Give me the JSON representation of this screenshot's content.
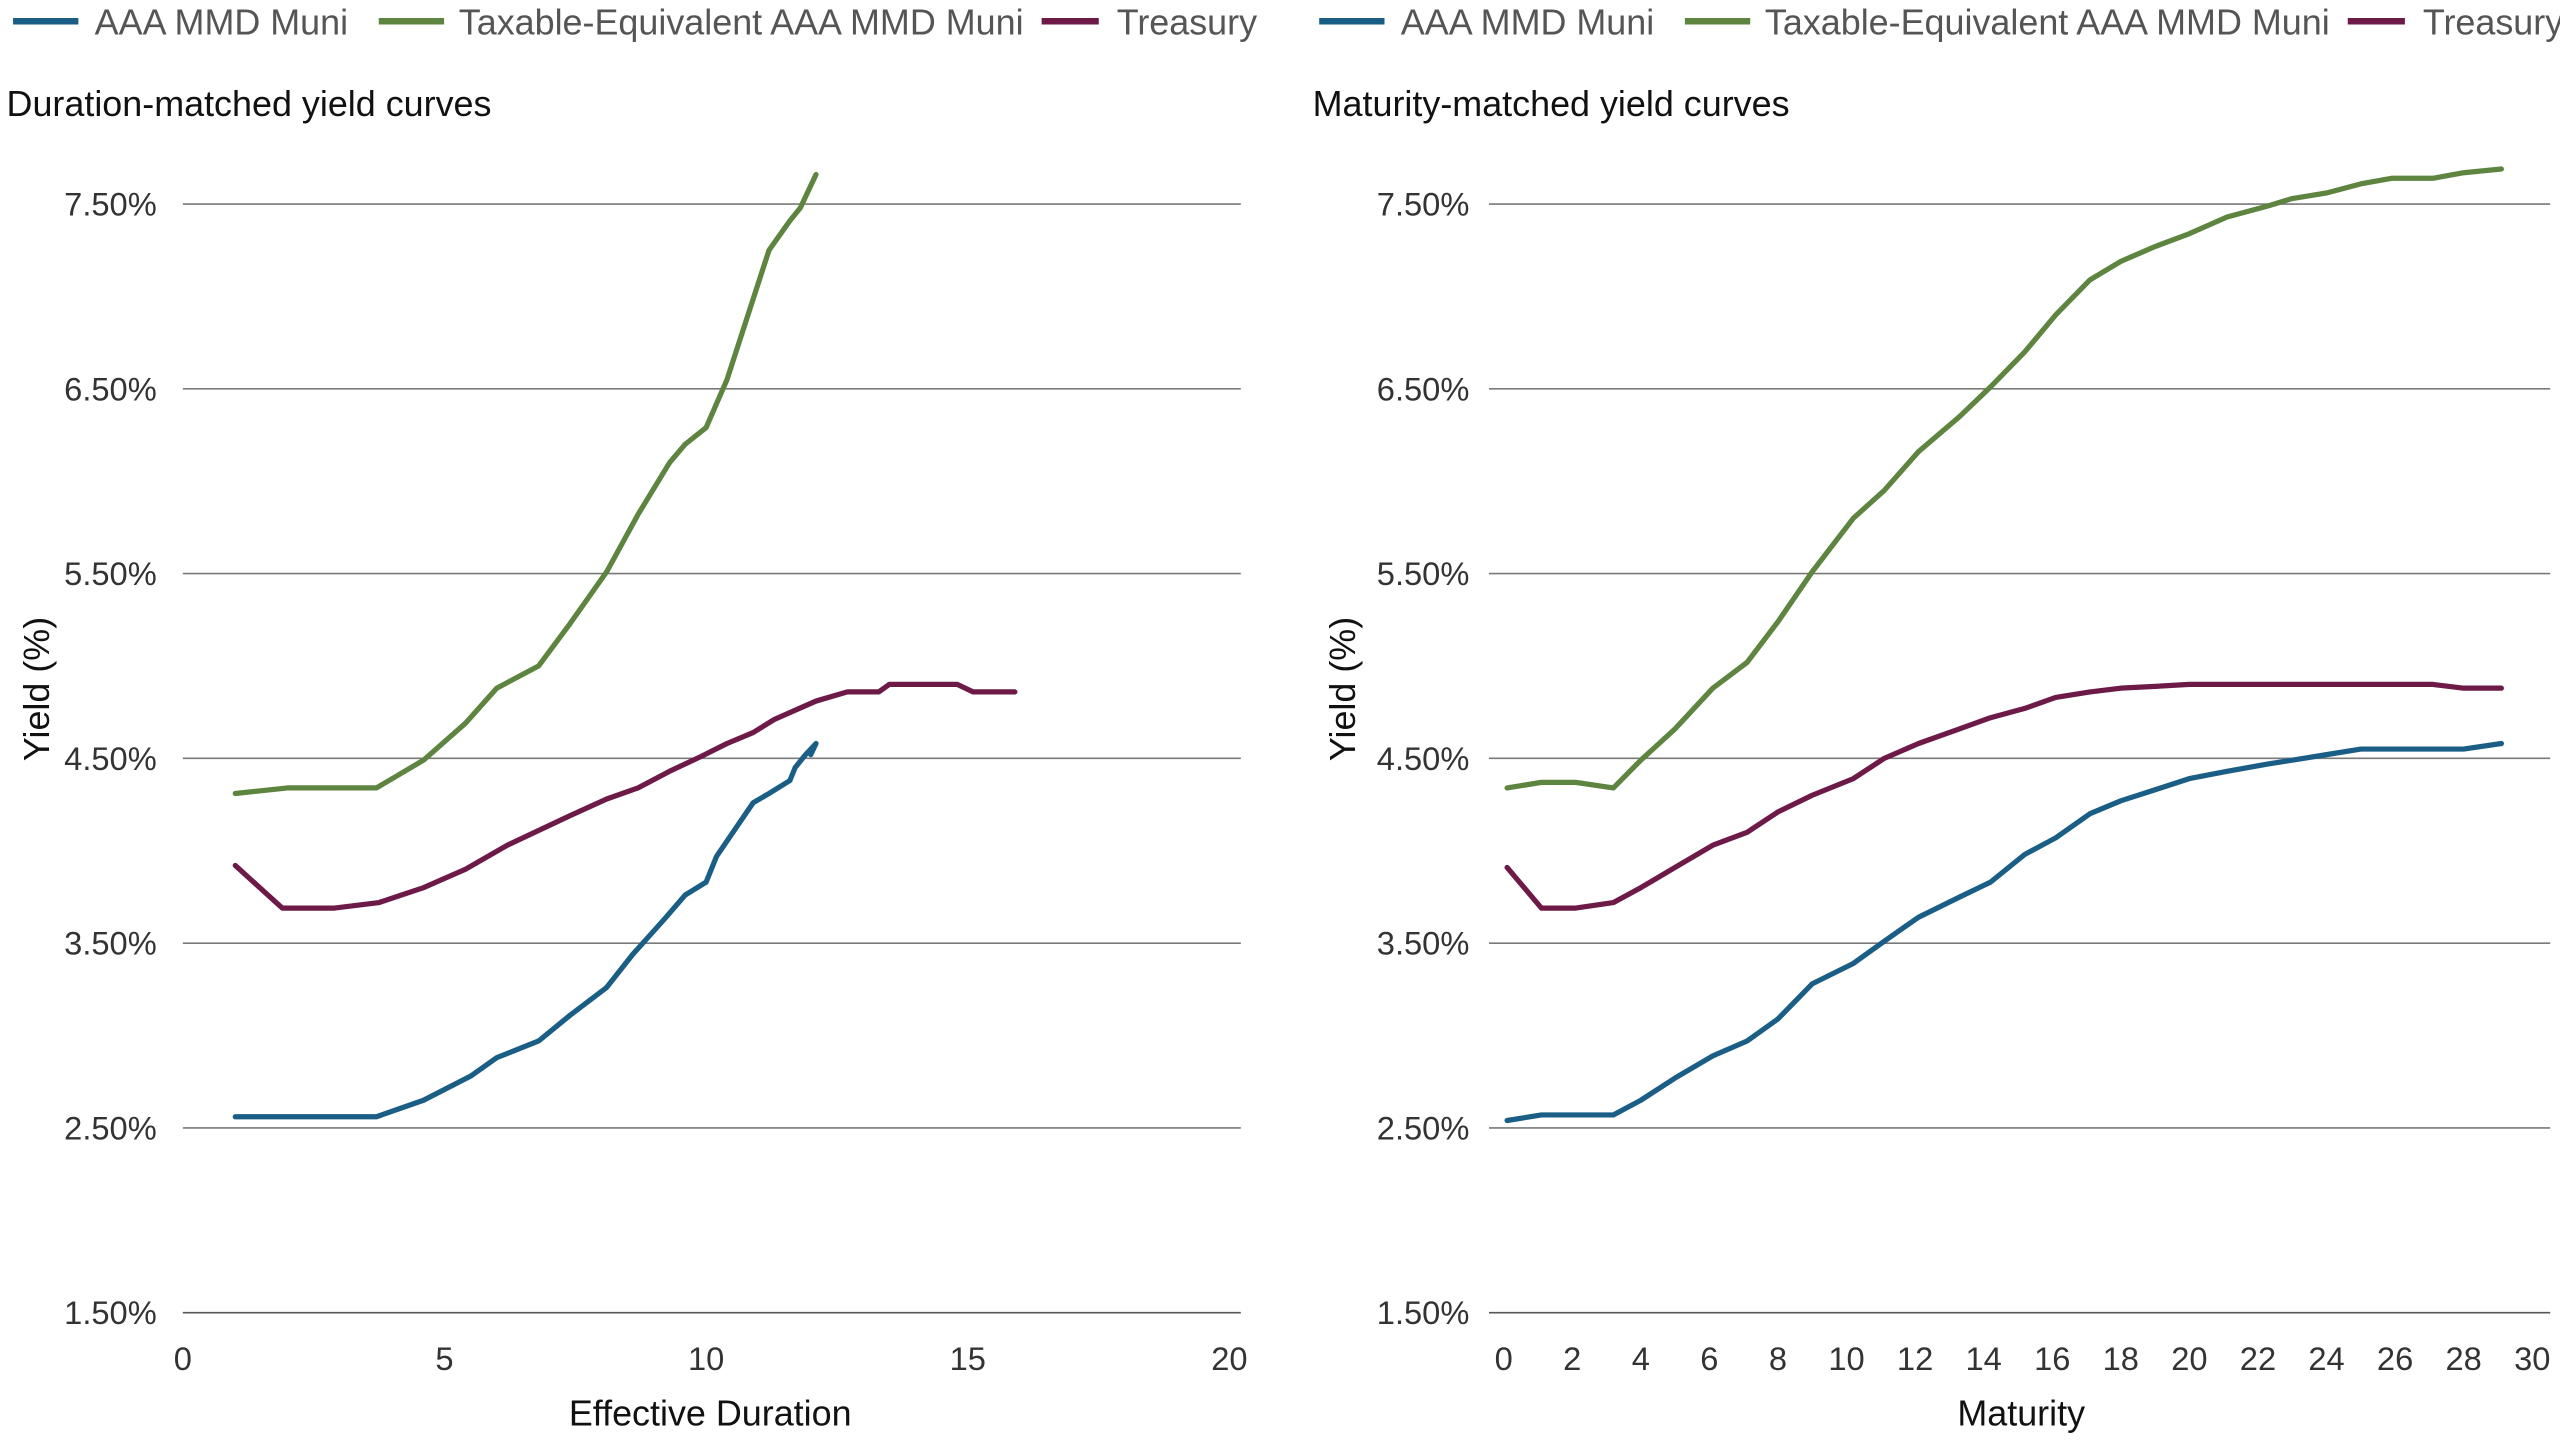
{
  "colors": {
    "muni": "#1a5e86",
    "taxable": "#5e8540",
    "treasury": "#6d1a48",
    "grid": "#7a7a7a"
  },
  "chart_data": [
    {
      "type": "line",
      "title": "Duration-matched yield curves",
      "xlabel": "Effective Duration",
      "ylabel": "Yield (%)",
      "xlim": [
        0,
        20
      ],
      "ylim": [
        1.5,
        7.5
      ],
      "xticks": [
        "0",
        "5",
        "10",
        "15",
        "20"
      ],
      "yticks": [
        "1.50%",
        "2.50%",
        "3.50%",
        "4.50%",
        "5.50%",
        "6.50%",
        "7.50%"
      ],
      "grid": "horizontal",
      "legend": {
        "position": "top",
        "entries": [
          "AAA MMD Muni",
          "Taxable-Equivalent AAA MMD Muni",
          "Treasury"
        ]
      },
      "series": [
        {
          "name": "AAA MMD Muni",
          "color_key": "muni",
          "x": [
            1.0,
            2.0,
            3.0,
            3.7,
            4.6,
            5.5,
            6.0,
            6.8,
            7.4,
            8.1,
            8.6,
            9.2,
            9.6,
            10.0,
            10.2,
            10.9,
            11.2,
            11.6,
            11.7,
            11.9,
            12.1,
            12.0
          ],
          "y": [
            2.56,
            2.56,
            2.56,
            2.56,
            2.65,
            2.78,
            2.88,
            2.97,
            3.11,
            3.26,
            3.44,
            3.63,
            3.76,
            3.83,
            3.97,
            4.26,
            4.31,
            4.38,
            4.45,
            4.52,
            4.58,
            4.52
          ]
        },
        {
          "name": "Taxable-Equivalent AAA MMD Muni",
          "color_key": "taxable",
          "x": [
            1.0,
            2.0,
            3.7,
            4.6,
            5.4,
            6.0,
            6.8,
            7.4,
            8.1,
            8.7,
            9.3,
            9.6,
            10.0,
            10.4,
            11.2,
            11.6,
            11.8,
            12.1
          ],
          "y": [
            4.31,
            4.34,
            4.34,
            4.49,
            4.69,
            4.88,
            5.0,
            5.23,
            5.51,
            5.82,
            6.1,
            6.2,
            6.29,
            6.55,
            7.25,
            7.41,
            7.48,
            7.66
          ]
        },
        {
          "name": "Treasury",
          "color_key": "treasury",
          "x": [
            1.0,
            1.9,
            2.9,
            3.75,
            4.6,
            5.4,
            6.2,
            7.4,
            8.1,
            8.7,
            9.3,
            9.9,
            10.4,
            10.9,
            11.3,
            12.1,
            12.7,
            13.3,
            13.5,
            14.8,
            15.1,
            15.9
          ],
          "y": [
            3.92,
            3.69,
            3.69,
            3.72,
            3.8,
            3.9,
            4.03,
            4.19,
            4.28,
            4.34,
            4.43,
            4.51,
            4.58,
            4.64,
            4.71,
            4.81,
            4.86,
            4.86,
            4.9,
            4.9,
            4.86,
            4.86
          ]
        }
      ]
    },
    {
      "type": "line",
      "title": "Maturity-matched yield curves",
      "xlabel": "Maturity",
      "ylabel": "Yield (%)",
      "xlim": [
        0,
        30
      ],
      "ylim": [
        1.5,
        7.5
      ],
      "xticks": [
        "0",
        "2",
        "4",
        "6",
        "8",
        "10",
        "12",
        "14",
        "16",
        "18",
        "20",
        "22",
        "24",
        "26",
        "28",
        "30"
      ],
      "yticks": [
        "1.50%",
        "2.50%",
        "3.50%",
        "4.50%",
        "5.50%",
        "6.50%",
        "7.50%"
      ],
      "grid": "horizontal",
      "legend": {
        "position": "top",
        "entries": [
          "AAA MMD Muni",
          "Taxable-Equivalent AAA MMD Muni",
          "Treasury"
        ]
      },
      "series": [
        {
          "name": "AAA MMD Muni",
          "color_key": "muni",
          "x": [
            0.1,
            1.1,
            2.1,
            3.2,
            4.0,
            5.0,
            6.1,
            7.1,
            8.0,
            9.0,
            10.2,
            11.1,
            12.1,
            13.3,
            14.2,
            15.2,
            16.1,
            17.1,
            18.0,
            19.0,
            20.0,
            21.1,
            22.3,
            23.0,
            24.0,
            25.0,
            25.9,
            27.1,
            28.0,
            29.1
          ],
          "y": [
            2.54,
            2.57,
            2.57,
            2.57,
            2.65,
            2.77,
            2.89,
            2.97,
            3.09,
            3.28,
            3.39,
            3.51,
            3.64,
            3.75,
            3.83,
            3.98,
            4.07,
            4.2,
            4.27,
            4.33,
            4.39,
            4.43,
            4.47,
            4.49,
            4.52,
            4.55,
            4.55,
            4.55,
            4.55,
            4.58
          ]
        },
        {
          "name": "Taxable-Equivalent AAA MMD Muni",
          "color_key": "taxable",
          "x": [
            0.1,
            1.1,
            2.1,
            3.2,
            4.0,
            5.0,
            6.1,
            7.1,
            8.0,
            9.0,
            10.2,
            11.1,
            12.1,
            13.3,
            14.2,
            15.2,
            16.1,
            17.1,
            18.0,
            19.0,
            20.0,
            21.1,
            22.3,
            23.0,
            24.0,
            25.0,
            25.9,
            27.1,
            28.0,
            29.1
          ],
          "y": [
            4.34,
            4.37,
            4.37,
            4.34,
            4.49,
            4.66,
            4.88,
            5.02,
            5.24,
            5.51,
            5.8,
            5.95,
            6.16,
            6.35,
            6.51,
            6.7,
            6.9,
            7.09,
            7.19,
            7.27,
            7.34,
            7.43,
            7.49,
            7.53,
            7.56,
            7.61,
            7.64,
            7.64,
            7.67,
            7.69
          ]
        },
        {
          "name": "Treasury",
          "color_key": "treasury",
          "x": [
            0.1,
            1.1,
            2.1,
            3.2,
            4.0,
            5.0,
            6.1,
            7.1,
            8.0,
            9.0,
            10.2,
            11.1,
            12.1,
            13.3,
            14.2,
            15.2,
            16.1,
            17.1,
            18.0,
            19.0,
            20.0,
            27.1,
            28.0,
            29.1
          ],
          "y": [
            3.91,
            3.69,
            3.69,
            3.72,
            3.8,
            3.91,
            4.03,
            4.1,
            4.21,
            4.3,
            4.39,
            4.5,
            4.58,
            4.66,
            4.72,
            4.77,
            4.83,
            4.86,
            4.88,
            4.89,
            4.9,
            4.9,
            4.88,
            4.88
          ]
        }
      ]
    }
  ]
}
